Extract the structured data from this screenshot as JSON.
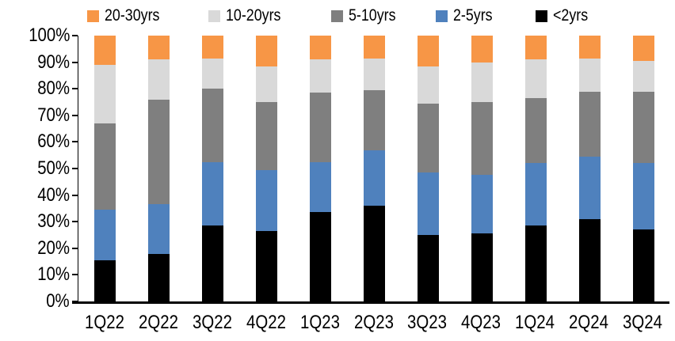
{
  "chart_data": {
    "type": "bar",
    "subtype": "100pct-stacked-column",
    "title": "",
    "xlabel": "",
    "ylabel": "",
    "grid": false,
    "categories": [
      "1Q22",
      "2Q22",
      "3Q22",
      "4Q22",
      "1Q23",
      "2Q23",
      "3Q23",
      "4Q23",
      "1Q24",
      "2Q24",
      "3Q24"
    ],
    "series": [
      {
        "name": "<2yrs",
        "color": "#000000",
        "values": [
          15.5,
          18,
          28.5,
          26.5,
          33.5,
          36,
          25,
          25.5,
          28.5,
          31,
          27
        ]
      },
      {
        "name": "2-5yrs",
        "color": "#4F81BD",
        "values": [
          19,
          18.5,
          24,
          23,
          19,
          21,
          23.5,
          22,
          23.5,
          23.5,
          25
        ]
      },
      {
        "name": "5-10yrs",
        "color": "#7F7F7F",
        "values": [
          32.5,
          39.5,
          27.5,
          25.5,
          26,
          22.5,
          26,
          27.5,
          24.5,
          24.5,
          27
        ]
      },
      {
        "name": "10-20yrs",
        "color": "#D9D9D9",
        "values": [
          22,
          15,
          11.5,
          13.5,
          12.5,
          12,
          14,
          15,
          14.5,
          12.5,
          11.5
        ]
      },
      {
        "name": "20-30yrs",
        "color": "#F79646",
        "values": [
          11,
          9,
          8.5,
          11.5,
          9,
          8.5,
          11.5,
          10,
          9,
          8.5,
          9.5
        ]
      }
    ],
    "stack_order": "bottom-to-top",
    "legend": {
      "position": "top",
      "order": [
        "20-30yrs",
        "10-20yrs",
        "5-10yrs",
        "2-5yrs",
        "<2yrs"
      ]
    },
    "y_axis": {
      "min": 0,
      "max": 100,
      "ticks": [
        "0%",
        "10%",
        "20%",
        "30%",
        "40%",
        "50%",
        "60%",
        "70%",
        "80%",
        "90%",
        "100%"
      ]
    },
    "colors": {
      "axis": "#000000",
      "background": "#FFFFFF"
    }
  }
}
